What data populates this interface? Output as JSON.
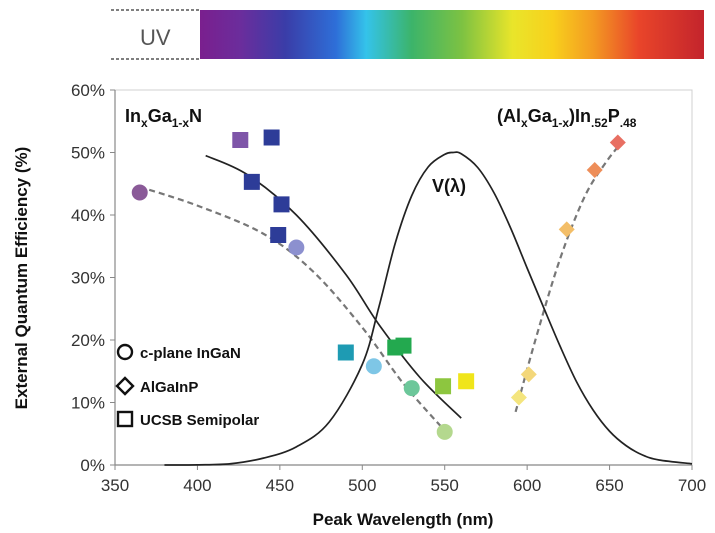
{
  "chart_data": {
    "type": "scatter",
    "xlabel": "Peak Wavelength (nm)",
    "ylabel": "External Quantum Efficiency (%)",
    "xlim": [
      350,
      700
    ],
    "ylim": [
      0,
      60
    ],
    "x_ticks": [
      "350",
      "400",
      "450",
      "500",
      "550",
      "600",
      "650",
      "700"
    ],
    "y_ticks": [
      "0%",
      "10%",
      "20%",
      "30%",
      "40%",
      "50%",
      "60%"
    ],
    "spectrum_bar": {
      "uv_label": "UV",
      "range": [
        400,
        700
      ]
    },
    "annotations": {
      "ingan_label": "In",
      "ingan_sub1": "x",
      "ingan_mid": "Ga",
      "ingan_sub2": "1-x",
      "ingan_end": "N",
      "algainp_p1": "(Al",
      "algainp_s1": "x",
      "algainp_p2": "Ga",
      "algainp_s2": "1-x",
      "algainp_p3": ")In",
      "algainp_s3": ".52",
      "algainp_p4": "P",
      "algainp_s4": ".48",
      "vlambda": "V(λ)"
    },
    "legend": [
      {
        "marker": "circle",
        "label": "c-plane InGaN"
      },
      {
        "marker": "diamond",
        "label": "AlGaInP"
      },
      {
        "marker": "square",
        "label": "UCSB Semipolar"
      }
    ],
    "series": [
      {
        "marker": "circle",
        "points": [
          {
            "x": 365,
            "y": 43.6,
            "color": "#8a5a98"
          },
          {
            "x": 460,
            "y": 34.8,
            "color": "#8c90cf"
          },
          {
            "x": 507,
            "y": 15.8,
            "color": "#7ec6e6"
          },
          {
            "x": 530,
            "y": 12.3,
            "color": "#6cc79a"
          },
          {
            "x": 550,
            "y": 5.3,
            "color": "#b4d88e"
          }
        ]
      },
      {
        "marker": "diamond",
        "points": [
          {
            "x": 595,
            "y": 10.8,
            "color": "#f4e57e"
          },
          {
            "x": 601,
            "y": 14.5,
            "color": "#f3d77a"
          },
          {
            "x": 624,
            "y": 37.7,
            "color": "#f3be68"
          },
          {
            "x": 641,
            "y": 47.2,
            "color": "#ee8e59"
          },
          {
            "x": 655,
            "y": 51.6,
            "color": "#e86f62"
          }
        ]
      },
      {
        "marker": "square",
        "points": [
          {
            "x": 426,
            "y": 52.0,
            "color": "#7e55a8"
          },
          {
            "x": 445,
            "y": 52.4,
            "color": "#2d3c98"
          },
          {
            "x": 433,
            "y": 45.3,
            "color": "#2d3c98"
          },
          {
            "x": 451,
            "y": 41.7,
            "color": "#2d3c98"
          },
          {
            "x": 449,
            "y": 36.8,
            "color": "#2d3c98"
          },
          {
            "x": 490,
            "y": 18.0,
            "color": "#1e9bb3"
          },
          {
            "x": 520,
            "y": 18.8,
            "color": "#23a94f"
          },
          {
            "x": 525,
            "y": 19.1,
            "color": "#23a94f"
          },
          {
            "x": 549,
            "y": 12.6,
            "color": "#8dc63f"
          },
          {
            "x": 563,
            "y": 13.4,
            "color": "#f0e51a"
          }
        ]
      }
    ],
    "curves": {
      "ingan_trend": {
        "style": "solid",
        "x": [
          405,
          430,
          460,
          490,
          510,
          535,
          560
        ],
        "y": [
          49.5,
          46.5,
          40,
          30.5,
          22.5,
          14,
          7.5
        ]
      },
      "cplane_fit": {
        "style": "dashed",
        "x": [
          365,
          400,
          440,
          470,
          500,
          525,
          550
        ],
        "y": [
          44.5,
          41.5,
          37,
          31,
          22,
          13,
          5.5
        ]
      },
      "algainp_fit": {
        "style": "dashed",
        "x": [
          593,
          605,
          620,
          635,
          648,
          657
        ],
        "y": [
          8.5,
          20,
          33,
          43,
          48.5,
          51.5
        ]
      },
      "vlambda": {
        "style": "solid",
        "x": [
          380,
          400,
          420,
          440,
          460,
          480,
          500,
          510,
          520,
          530,
          540,
          550,
          555,
          560,
          570,
          580,
          590,
          600,
          610,
          620,
          630,
          640,
          650,
          660,
          670,
          680,
          700
        ],
        "y": [
          0,
          0.02,
          0.2,
          1.1,
          2.9,
          6.9,
          16.1,
          25.2,
          35.5,
          43.1,
          47.7,
          49.7,
          50,
          49.8,
          47.6,
          43.5,
          37.9,
          31.5,
          25.2,
          19,
          13.3,
          8.8,
          5.4,
          3.1,
          1.6,
          0.8,
          0.2
        ]
      }
    }
  }
}
